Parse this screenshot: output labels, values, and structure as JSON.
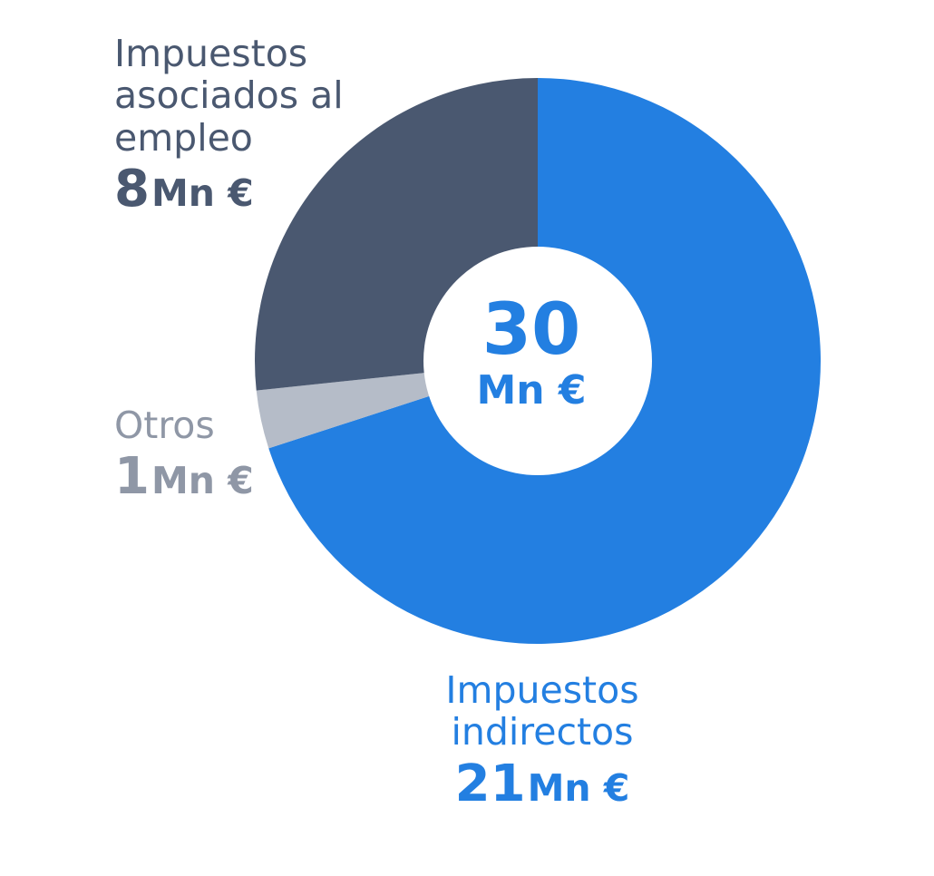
{
  "chart_data": {
    "type": "pie",
    "center_label": {
      "value": "30",
      "unit": "Mn €"
    },
    "slices": [
      {
        "label": "Impuestos indirectos",
        "value": 21,
        "value_text": "21",
        "unit": "Mn €",
        "color": "#237fe1"
      },
      {
        "label": "Otros",
        "value": 1,
        "value_text": "1",
        "unit": "Mn €",
        "color": "#b5bcc8"
      },
      {
        "label": "Impuestos asociados al empleo",
        "value": 8,
        "value_text": "8",
        "unit": "Mn €",
        "color": "#4a5870"
      }
    ]
  }
}
